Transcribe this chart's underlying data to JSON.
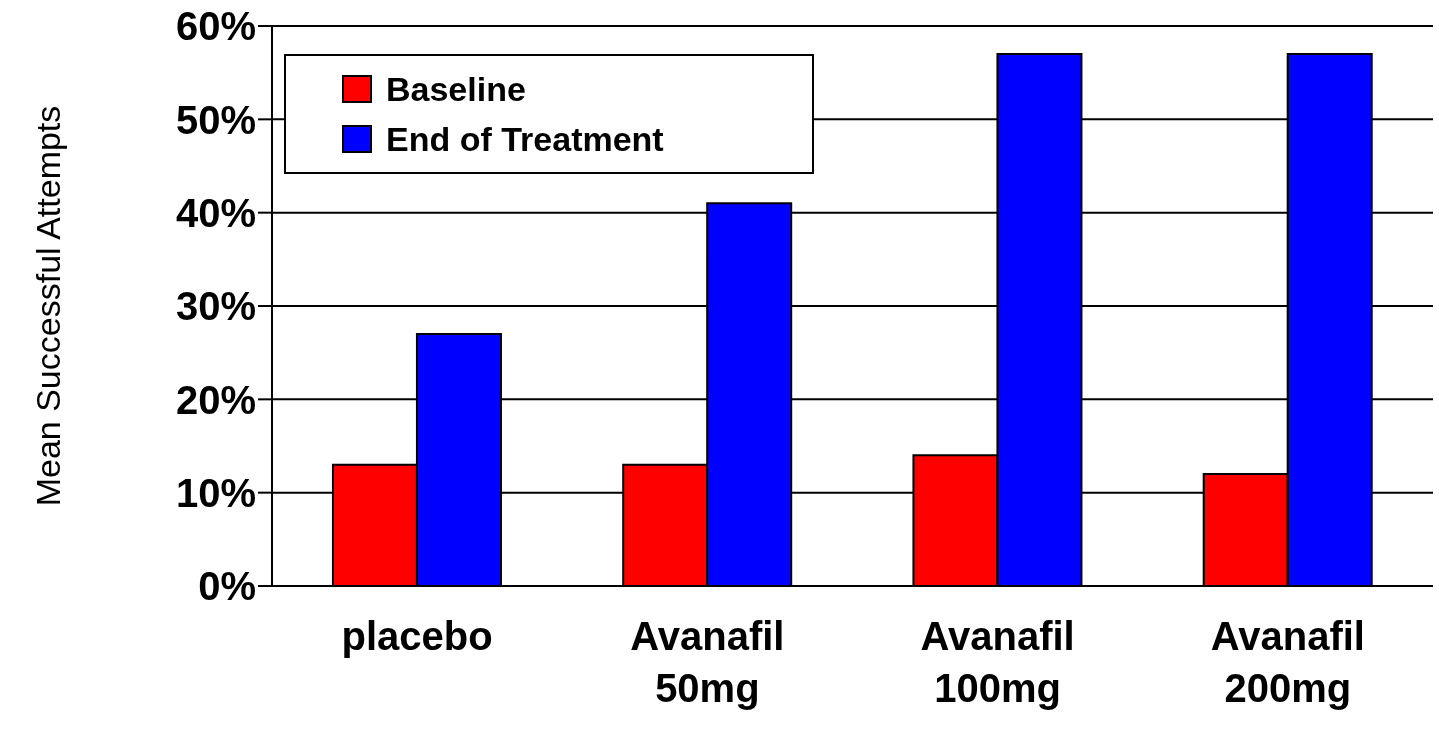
{
  "chart_data": {
    "type": "bar",
    "ylabel": "Mean Successful Attempts",
    "categories": [
      "placebo",
      "Avanafil 50mg",
      "Avanafil 100mg",
      "Avanafil 200mg"
    ],
    "series": [
      {
        "name": "Baseline",
        "color": "#ff0000",
        "values": [
          13,
          13,
          14,
          12
        ]
      },
      {
        "name": "End of Treatment",
        "color": "#0000ff",
        "values": [
          27,
          41,
          57,
          57
        ]
      }
    ],
    "ylim": [
      0,
      60
    ],
    "yticks": [
      {
        "value": 0,
        "label": "0%"
      },
      {
        "value": 10,
        "label": "10%"
      },
      {
        "value": 20,
        "label": "20%"
      },
      {
        "value": 30,
        "label": "30%"
      },
      {
        "value": 40,
        "label": "40%"
      },
      {
        "value": 50,
        "label": "50%"
      },
      {
        "value": 60,
        "label": "60%"
      }
    ],
    "grid": "y",
    "legend": "top left"
  }
}
